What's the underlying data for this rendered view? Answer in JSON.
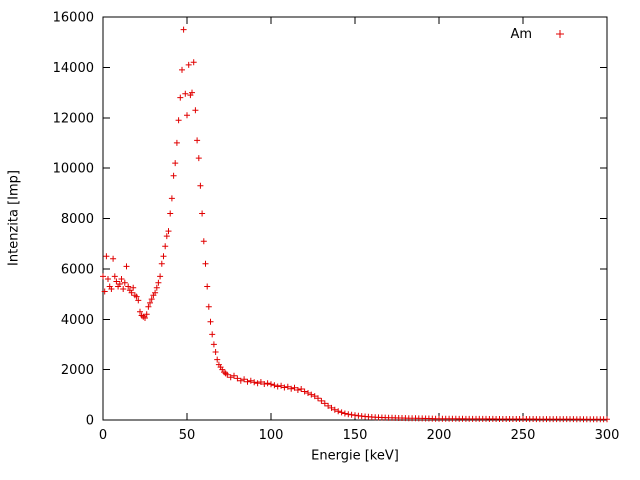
{
  "page": {
    "background": "#ffffff"
  },
  "chart_data": {
    "type": "scatter",
    "marker": "plus",
    "marker_color": "#e00000",
    "title": "",
    "xlabel": "Energie [keV]",
    "ylabel": "Intenzita [Imp]",
    "xlim": [
      0,
      300
    ],
    "ylim": [
      0,
      16000
    ],
    "xticks": [
      0,
      50,
      100,
      150,
      200,
      250,
      300
    ],
    "yticks": [
      0,
      2000,
      4000,
      6000,
      8000,
      10000,
      12000,
      14000,
      16000
    ],
    "grid": false,
    "legend": {
      "position": "top-right",
      "entries": [
        {
          "label": "Am",
          "color": "#e00000",
          "marker": "plus"
        }
      ]
    },
    "series": [
      {
        "name": "Am",
        "color": "#e00000",
        "points": [
          [
            0,
            5700
          ],
          [
            1,
            5100
          ],
          [
            2,
            6500
          ],
          [
            3,
            5600
          ],
          [
            4,
            5300
          ],
          [
            5,
            5200
          ],
          [
            6,
            6400
          ],
          [
            7,
            5700
          ],
          [
            8,
            5500
          ],
          [
            9,
            5300
          ],
          [
            10,
            5400
          ],
          [
            11,
            5600
          ],
          [
            12,
            5200
          ],
          [
            13,
            5450
          ],
          [
            14,
            6100
          ],
          [
            15,
            5300
          ],
          [
            16,
            5150
          ],
          [
            17,
            5050
          ],
          [
            18,
            5250
          ],
          [
            19,
            4950
          ],
          [
            20,
            4900
          ],
          [
            21,
            4750
          ],
          [
            22,
            4300
          ],
          [
            23,
            4150
          ],
          [
            24,
            4100
          ],
          [
            25,
            4050
          ],
          [
            26,
            4200
          ],
          [
            27,
            4500
          ],
          [
            28,
            4650
          ],
          [
            29,
            4800
          ],
          [
            30,
            4950
          ],
          [
            31,
            5050
          ],
          [
            32,
            5250
          ],
          [
            33,
            5450
          ],
          [
            34,
            5700
          ],
          [
            35,
            6200
          ],
          [
            36,
            6500
          ],
          [
            37,
            6900
          ],
          [
            38,
            7300
          ],
          [
            39,
            7500
          ],
          [
            40,
            8200
          ],
          [
            41,
            8800
          ],
          [
            42,
            9700
          ],
          [
            43,
            10200
          ],
          [
            44,
            11000
          ],
          [
            45,
            11900
          ],
          [
            46,
            12800
          ],
          [
            47,
            13900
          ],
          [
            48,
            15500
          ],
          [
            49,
            12950
          ],
          [
            50,
            12100
          ],
          [
            51,
            14100
          ],
          [
            52,
            12900
          ],
          [
            53,
            13000
          ],
          [
            54,
            14200
          ],
          [
            55,
            12300
          ],
          [
            56,
            11100
          ],
          [
            57,
            10400
          ],
          [
            58,
            9300
          ],
          [
            59,
            8200
          ],
          [
            60,
            7100
          ],
          [
            61,
            6200
          ],
          [
            62,
            5300
          ],
          [
            63,
            4500
          ],
          [
            64,
            3900
          ],
          [
            65,
            3400
          ],
          [
            66,
            3000
          ],
          [
            67,
            2700
          ],
          [
            68,
            2400
          ],
          [
            69,
            2200
          ],
          [
            70,
            2100
          ],
          [
            71,
            2000
          ],
          [
            72,
            1900
          ],
          [
            73,
            1850
          ],
          [
            74,
            1800
          ],
          [
            76,
            1700
          ],
          [
            78,
            1760
          ],
          [
            80,
            1650
          ],
          [
            82,
            1560
          ],
          [
            84,
            1620
          ],
          [
            86,
            1520
          ],
          [
            88,
            1560
          ],
          [
            90,
            1500
          ],
          [
            92,
            1460
          ],
          [
            94,
            1510
          ],
          [
            96,
            1430
          ],
          [
            98,
            1460
          ],
          [
            100,
            1420
          ],
          [
            102,
            1380
          ],
          [
            104,
            1330
          ],
          [
            106,
            1360
          ],
          [
            108,
            1290
          ],
          [
            110,
            1320
          ],
          [
            112,
            1240
          ],
          [
            114,
            1280
          ],
          [
            116,
            1190
          ],
          [
            118,
            1230
          ],
          [
            120,
            1130
          ],
          [
            122,
            1070
          ],
          [
            124,
            1010
          ],
          [
            126,
            950
          ],
          [
            128,
            860
          ],
          [
            130,
            760
          ],
          [
            132,
            660
          ],
          [
            134,
            560
          ],
          [
            136,
            480
          ],
          [
            138,
            410
          ],
          [
            140,
            350
          ],
          [
            142,
            300
          ],
          [
            144,
            260
          ],
          [
            146,
            230
          ],
          [
            148,
            210
          ],
          [
            150,
            190
          ],
          [
            152,
            170
          ],
          [
            154,
            155
          ],
          [
            156,
            140
          ],
          [
            158,
            130
          ],
          [
            160,
            120
          ],
          [
            162,
            112
          ],
          [
            164,
            105
          ],
          [
            166,
            100
          ],
          [
            168,
            95
          ],
          [
            170,
            90
          ],
          [
            172,
            88
          ],
          [
            174,
            85
          ],
          [
            176,
            80
          ],
          [
            178,
            78
          ],
          [
            180,
            75
          ],
          [
            182,
            72
          ],
          [
            184,
            70
          ],
          [
            186,
            68
          ],
          [
            188,
            65
          ],
          [
            190,
            62
          ],
          [
            192,
            60
          ],
          [
            194,
            58
          ],
          [
            196,
            55
          ],
          [
            198,
            52
          ],
          [
            200,
            50
          ],
          [
            202,
            50
          ],
          [
            204,
            48
          ],
          [
            206,
            50
          ],
          [
            208,
            46
          ],
          [
            210,
            48
          ],
          [
            212,
            45
          ],
          [
            214,
            46
          ],
          [
            216,
            44
          ],
          [
            218,
            45
          ],
          [
            220,
            43
          ],
          [
            222,
            44
          ],
          [
            224,
            42
          ],
          [
            226,
            43
          ],
          [
            228,
            42
          ],
          [
            230,
            41
          ],
          [
            232,
            42
          ],
          [
            234,
            40
          ],
          [
            236,
            41
          ],
          [
            238,
            40
          ],
          [
            240,
            40
          ],
          [
            242,
            39
          ],
          [
            244,
            40
          ],
          [
            246,
            38
          ],
          [
            248,
            39
          ],
          [
            250,
            38
          ],
          [
            252,
            38
          ],
          [
            254,
            37
          ],
          [
            256,
            38
          ],
          [
            258,
            36
          ],
          [
            260,
            37
          ],
          [
            262,
            36
          ],
          [
            264,
            36
          ],
          [
            266,
            35
          ],
          [
            268,
            36
          ],
          [
            270,
            35
          ],
          [
            272,
            35
          ],
          [
            274,
            34
          ],
          [
            276,
            35
          ],
          [
            278,
            34
          ],
          [
            280,
            34
          ],
          [
            282,
            33
          ],
          [
            284,
            34
          ],
          [
            286,
            33
          ],
          [
            288,
            33
          ],
          [
            290,
            32
          ],
          [
            292,
            33
          ],
          [
            294,
            32
          ],
          [
            296,
            32
          ],
          [
            298,
            31
          ],
          [
            300,
            31
          ]
        ]
      }
    ]
  }
}
